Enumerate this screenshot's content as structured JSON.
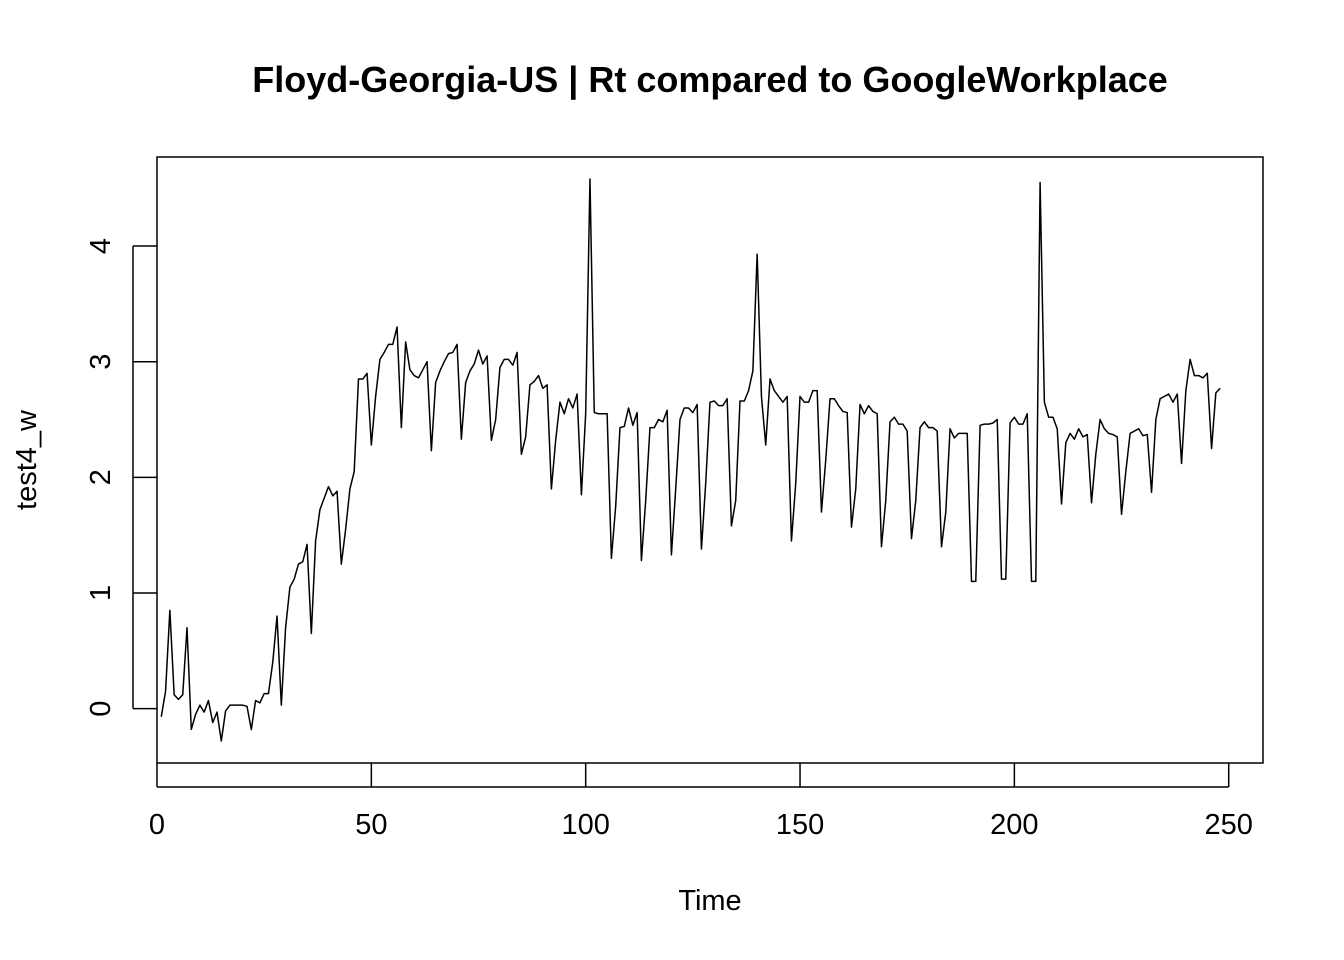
{
  "chart_data": {
    "type": "line",
    "title": "Floyd-Georgia-US | Rt compared to GoogleWorkplace",
    "xlabel": "Time",
    "ylabel": "test4_w",
    "xlim": [
      0,
      258
    ],
    "ylim": [
      -0.47,
      4.77
    ],
    "x_ticks": [
      0,
      50,
      100,
      150,
      200,
      250
    ],
    "y_ticks": [
      0,
      1,
      2,
      3,
      4
    ],
    "grid": false,
    "series": [
      {
        "x_start": 1,
        "values": [
          -0.07,
          0.15,
          0.85,
          0.12,
          0.08,
          0.12,
          0.7,
          -0.18,
          -0.05,
          0.03,
          -0.03,
          0.07,
          -0.12,
          -0.03,
          -0.28,
          -0.02,
          0.03,
          0.03,
          0.03,
          0.03,
          0.02,
          -0.18,
          0.07,
          0.05,
          0.13,
          0.13,
          0.4,
          0.8,
          0.03,
          0.7,
          1.05,
          1.12,
          1.25,
          1.27,
          1.42,
          0.65,
          1.45,
          1.72,
          1.82,
          1.92,
          1.84,
          1.88,
          1.25,
          1.55,
          1.9,
          2.05,
          2.85,
          2.85,
          2.9,
          2.28,
          2.7,
          3.02,
          3.08,
          3.15,
          3.15,
          3.3,
          2.43,
          3.17,
          2.93,
          2.88,
          2.86,
          2.93,
          3.0,
          2.23,
          2.82,
          2.92,
          3.0,
          3.07,
          3.08,
          3.15,
          2.33,
          2.82,
          2.92,
          2.98,
          3.1,
          2.98,
          3.05,
          2.32,
          2.5,
          2.95,
          3.02,
          3.02,
          2.97,
          3.08,
          2.2,
          2.35,
          2.8,
          2.83,
          2.88,
          2.77,
          2.8,
          1.9,
          2.32,
          2.65,
          2.55,
          2.68,
          2.6,
          2.72,
          1.85,
          2.55,
          4.58,
          2.56,
          2.55,
          2.55,
          2.55,
          1.3,
          1.75,
          2.43,
          2.44,
          2.6,
          2.45,
          2.56,
          1.28,
          1.8,
          2.43,
          2.43,
          2.5,
          2.48,
          2.58,
          1.33,
          1.9,
          2.5,
          2.6,
          2.6,
          2.56,
          2.63,
          1.38,
          1.95,
          2.65,
          2.66,
          2.62,
          2.62,
          2.68,
          1.58,
          1.8,
          2.66,
          2.66,
          2.75,
          2.92,
          3.93,
          2.7,
          2.28,
          2.85,
          2.75,
          2.7,
          2.65,
          2.7,
          1.45,
          1.95,
          2.7,
          2.65,
          2.65,
          2.75,
          2.75,
          1.7,
          2.15,
          2.68,
          2.68,
          2.62,
          2.57,
          2.56,
          1.57,
          1.9,
          2.63,
          2.55,
          2.62,
          2.57,
          2.55,
          1.4,
          1.8,
          2.48,
          2.52,
          2.46,
          2.46,
          2.4,
          1.47,
          1.8,
          2.43,
          2.48,
          2.43,
          2.43,
          2.4,
          1.4,
          1.7,
          2.42,
          2.34,
          2.38,
          2.38,
          2.38,
          1.1,
          1.1,
          2.45,
          2.46,
          2.46,
          2.47,
          2.5,
          1.12,
          1.12,
          2.47,
          2.52,
          2.46,
          2.46,
          2.55,
          1.1,
          1.1,
          4.55,
          2.65,
          2.52,
          2.52,
          2.42,
          1.77,
          2.3,
          2.38,
          2.33,
          2.42,
          2.35,
          2.37,
          1.78,
          2.2,
          2.5,
          2.42,
          2.38,
          2.37,
          2.35,
          1.68,
          2.05,
          2.38,
          2.4,
          2.42,
          2.36,
          2.37,
          1.87,
          2.5,
          2.68,
          2.7,
          2.72,
          2.65,
          2.72,
          2.12,
          2.75,
          3.02,
          2.88,
          2.88,
          2.86,
          2.9,
          2.25,
          2.73,
          2.77
        ]
      }
    ]
  }
}
